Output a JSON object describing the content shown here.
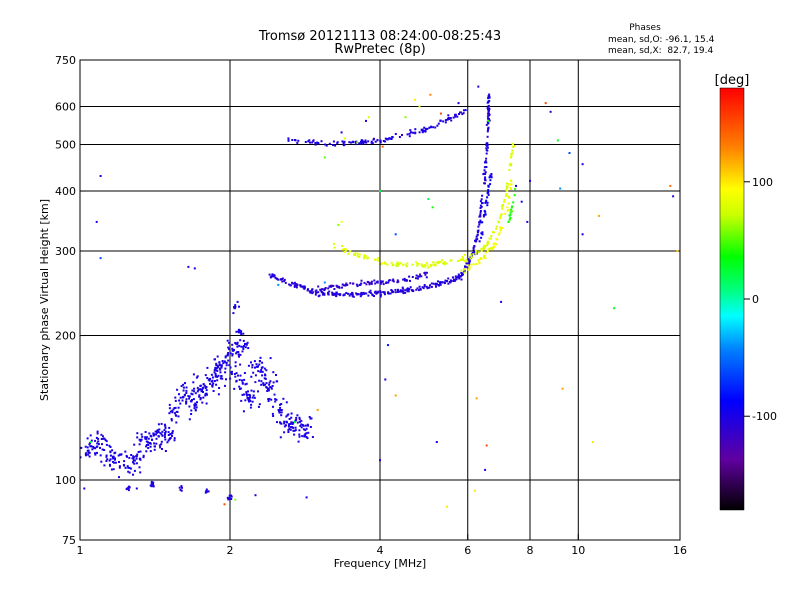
{
  "chart_data": {
    "type": "scatter",
    "title": "Tromsø 20121113 08:24:00-08:25:43",
    "subtitle": "RwPretec (8p)",
    "xlabel": "Frequency [MHz]",
    "ylabel": "Stationary phase Virtual Height [km]",
    "x_scale": "log",
    "y_scale": "log",
    "xlim": [
      1,
      16
    ],
    "ylim": [
      75,
      750
    ],
    "x_ticks": [
      1,
      2,
      4,
      6,
      8,
      10,
      16
    ],
    "y_ticks": [
      75,
      100,
      200,
      300,
      400,
      500,
      600,
      750
    ],
    "x_grid": [
      2,
      4,
      6,
      8,
      10
    ],
    "y_grid": [
      100,
      200,
      300,
      400,
      500,
      600
    ],
    "grid": true,
    "stats": {
      "heading": "Phases",
      "line_o": "mean, sd,O: -96.1, 15.4",
      "line_x": "mean, sd,X:  82.7, 19.4"
    },
    "colorbar": {
      "label": "[deg]",
      "range": [
        -180,
        180
      ],
      "ticks": [
        100,
        0,
        -100
      ]
    },
    "clusters": [
      {
        "shape": "blob",
        "phase": -100,
        "points": [
          [
            1.05,
            118
          ],
          [
            1.1,
            120
          ],
          [
            1.15,
            112
          ],
          [
            1.2,
            108
          ],
          [
            1.28,
            110
          ],
          [
            1.35,
            118
          ],
          [
            1.42,
            122
          ],
          [
            1.5,
            125
          ],
          [
            1.55,
            140
          ],
          [
            1.62,
            150
          ],
          [
            1.7,
            145
          ],
          [
            1.75,
            155
          ],
          [
            1.85,
            160
          ],
          [
            1.9,
            170
          ],
          [
            2.0,
            175
          ],
          [
            2.05,
            190
          ],
          [
            2.1,
            160
          ],
          [
            2.2,
            150
          ],
          [
            2.3,
            170
          ],
          [
            2.4,
            160
          ],
          [
            2.5,
            140
          ],
          [
            2.65,
            130
          ],
          [
            2.8,
            128
          ]
        ],
        "spread": 0.18,
        "n": 650
      },
      {
        "shape": "blob",
        "phase": -100,
        "points": [
          [
            1.25,
            96
          ],
          [
            1.4,
            98
          ],
          [
            1.6,
            97
          ],
          [
            1.8,
            95
          ],
          [
            2.0,
            92
          ]
        ],
        "spread": 0.04,
        "n": 40
      },
      {
        "shape": "blob",
        "phase": -98,
        "points": [
          [
            2.05,
            230
          ],
          [
            2.1,
            205
          ],
          [
            2.15,
            190
          ]
        ],
        "spread": 0.07,
        "n": 30
      },
      {
        "shape": "trace",
        "phase": -105,
        "points": [
          [
            2.4,
            268
          ],
          [
            2.7,
            255
          ],
          [
            3.0,
            245
          ],
          [
            3.5,
            243
          ],
          [
            4.0,
            245
          ],
          [
            4.5,
            248
          ],
          [
            5.0,
            253
          ],
          [
            5.4,
            258
          ],
          [
            5.8,
            265
          ]
        ],
        "n": 240
      },
      {
        "shape": "trace",
        "phase": -110,
        "points": [
          [
            3.0,
            250
          ],
          [
            3.5,
            256
          ],
          [
            4.0,
            258
          ],
          [
            4.5,
            262
          ],
          [
            5.0,
            268
          ]
        ],
        "n": 90
      },
      {
        "shape": "trace",
        "phase": -102,
        "points": [
          [
            2.6,
            512
          ],
          [
            3.0,
            503
          ],
          [
            3.5,
            502
          ],
          [
            4.0,
            510
          ],
          [
            4.5,
            525
          ],
          [
            5.0,
            540
          ],
          [
            5.5,
            565
          ],
          [
            6.0,
            590
          ]
        ],
        "n": 140
      },
      {
        "shape": "trace",
        "phase": -102,
        "points": [
          [
            5.8,
            265
          ],
          [
            6.1,
            290
          ],
          [
            6.3,
            330
          ],
          [
            6.45,
            400
          ],
          [
            6.55,
            480
          ],
          [
            6.6,
            560
          ],
          [
            6.62,
            640
          ]
        ],
        "n": 140
      },
      {
        "shape": "trace",
        "phase": -95,
        "points": [
          [
            6.2,
            290
          ],
          [
            6.4,
            330
          ],
          [
            6.55,
            380
          ],
          [
            6.7,
            440
          ]
        ],
        "n": 40
      },
      {
        "shape": "trace",
        "phase": 80,
        "points": [
          [
            3.2,
            308
          ],
          [
            3.6,
            295
          ],
          [
            4.0,
            285
          ],
          [
            4.5,
            280
          ],
          [
            5.0,
            280
          ],
          [
            5.5,
            285
          ],
          [
            6.0,
            290
          ],
          [
            6.5,
            305
          ],
          [
            6.9,
            340
          ],
          [
            7.15,
            390
          ],
          [
            7.3,
            450
          ],
          [
            7.4,
            500
          ]
        ],
        "n": 170
      },
      {
        "shape": "trace",
        "phase": 88,
        "points": [
          [
            5.8,
            270
          ],
          [
            6.3,
            285
          ],
          [
            6.8,
            310
          ],
          [
            7.2,
            360
          ],
          [
            7.35,
            420
          ]
        ],
        "n": 60
      },
      {
        "shape": "trace",
        "phase": 40,
        "points": [
          [
            7.25,
            340
          ],
          [
            7.4,
            380
          ],
          [
            7.55,
            420
          ]
        ],
        "n": 15
      }
    ],
    "stray_points": [
      [
        1.1,
        430,
        -100
      ],
      [
        1.1,
        290,
        -60
      ],
      [
        1.08,
        345,
        -100
      ],
      [
        1.05,
        120,
        20
      ],
      [
        1.3,
        112,
        -100
      ],
      [
        1.65,
        278,
        -100
      ],
      [
        1.7,
        276,
        -95
      ],
      [
        2.85,
        92,
        -100
      ],
      [
        1.6,
        95,
        -100
      ],
      [
        2.05,
        91,
        60
      ],
      [
        3.1,
        258,
        -40
      ],
      [
        3.35,
        345,
        90
      ],
      [
        3.3,
        340,
        60
      ],
      [
        3.0,
        140,
        120
      ],
      [
        3.1,
        470,
        50
      ],
      [
        3.35,
        530,
        -100
      ],
      [
        3.4,
        515,
        80
      ],
      [
        3.75,
        560,
        -100
      ],
      [
        3.8,
        570,
        80
      ],
      [
        3.6,
        505,
        60
      ],
      [
        4.05,
        495,
        140
      ],
      [
        4.1,
        162,
        -100
      ],
      [
        4.15,
        191,
        -80
      ],
      [
        4.15,
        245,
        -100
      ],
      [
        4.3,
        325,
        -60
      ],
      [
        4.0,
        400,
        20
      ],
      [
        4.3,
        150,
        120
      ],
      [
        4.5,
        570,
        60
      ],
      [
        4.7,
        620,
        100
      ],
      [
        4.8,
        600,
        80
      ],
      [
        5.0,
        385,
        20
      ],
      [
        5.05,
        635,
        130
      ],
      [
        5.1,
        370,
        40
      ],
      [
        5.2,
        120,
        -100
      ],
      [
        5.3,
        580,
        150
      ],
      [
        5.45,
        88,
        100
      ],
      [
        5.75,
        610,
        -100
      ],
      [
        6.2,
        95,
        100
      ],
      [
        6.25,
        148,
        120
      ],
      [
        6.3,
        660,
        -100
      ],
      [
        6.5,
        105,
        -100
      ],
      [
        6.55,
        118,
        150
      ],
      [
        6.6,
        560,
        40
      ],
      [
        7.0,
        235,
        -100
      ],
      [
        7.5,
        410,
        -100
      ],
      [
        7.7,
        380,
        -100
      ],
      [
        7.9,
        345,
        -100
      ],
      [
        8.0,
        420,
        -100
      ],
      [
        8.6,
        610,
        150
      ],
      [
        8.8,
        585,
        -100
      ],
      [
        9.1,
        510,
        30
      ],
      [
        9.2,
        405,
        -40
      ],
      [
        9.3,
        155,
        120
      ],
      [
        9.6,
        480,
        -60
      ],
      [
        10.2,
        325,
        -100
      ],
      [
        10.2,
        455,
        -100
      ],
      [
        10.7,
        120,
        100
      ],
      [
        11.0,
        355,
        120
      ],
      [
        11.8,
        228,
        30
      ],
      [
        15.5,
        390,
        -100
      ],
      [
        15.8,
        300,
        110
      ],
      [
        15.3,
        410,
        140
      ],
      [
        1.12,
        122,
        -100
      ],
      [
        1.02,
        96,
        -100
      ],
      [
        2.5,
        255,
        -40
      ],
      [
        2.25,
        93,
        -100
      ],
      [
        1.95,
        89,
        150
      ],
      [
        1.3,
        96,
        -100
      ],
      [
        2.7,
        132,
        30
      ],
      [
        4.0,
        110,
        -100
      ]
    ]
  }
}
